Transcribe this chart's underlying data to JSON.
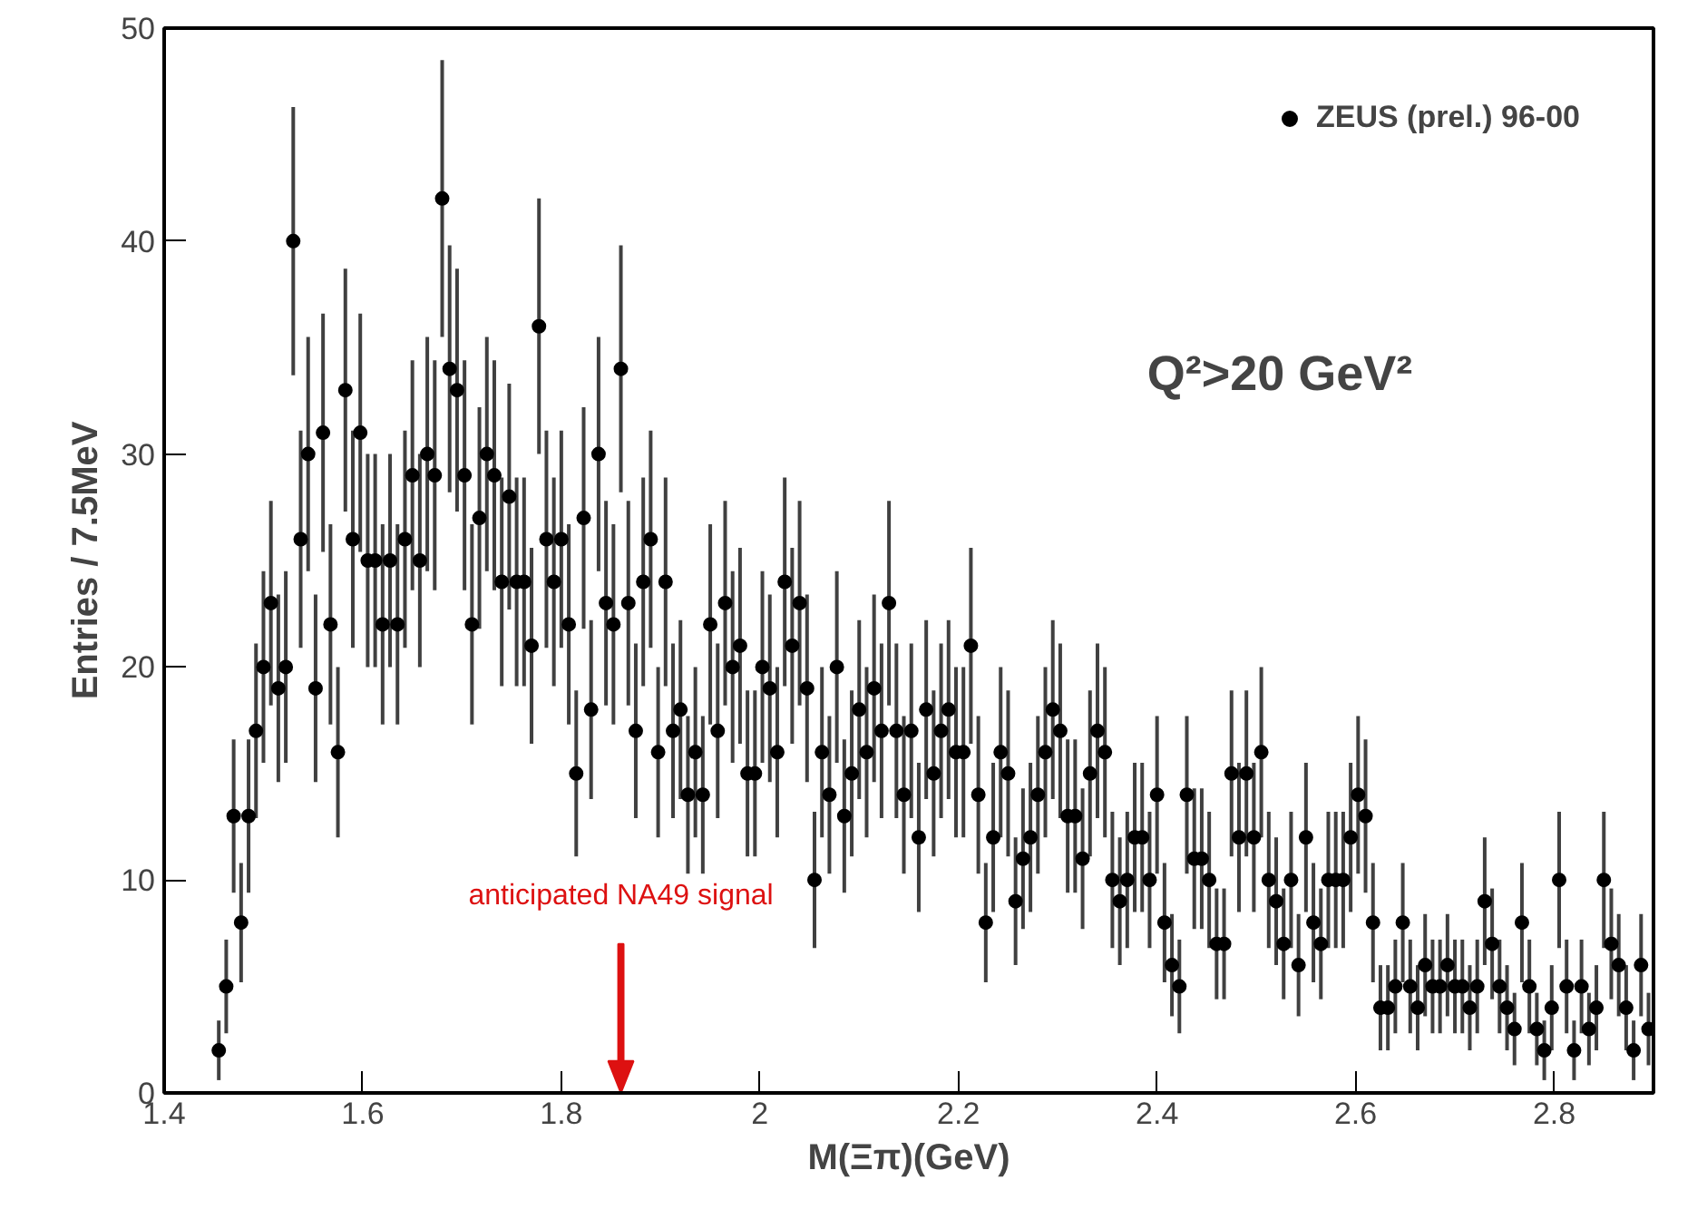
{
  "chart_data": {
    "type": "scatter",
    "xlabel": "M(Ξπ)(GeV)",
    "ylabel": "Entries / 7.5MeV",
    "xlim": [
      1.4,
      2.9
    ],
    "ylim": [
      0,
      50
    ],
    "xticks": [
      1.4,
      1.6,
      1.8,
      2,
      2.2,
      2.4,
      2.6,
      2.8
    ],
    "yticks": [
      0,
      10,
      20,
      30,
      40,
      50
    ],
    "grid": false,
    "legend": "top right",
    "marker": "circle",
    "annotations": [
      "Q²>20 GeV²"
    ],
    "ref_lines": [
      {
        "axis": "x",
        "value": 1.86,
        "label": "anticipated NA49 signal",
        "color": "#dd1111"
      }
    ],
    "series": [
      {
        "name": "ZEUS (prel.) 96-00",
        "color": "#000000",
        "x": [
          1.455,
          1.4625,
          1.47,
          1.4775,
          1.485,
          1.4925,
          1.5,
          1.5075,
          1.515,
          1.5225,
          1.53,
          1.5375,
          1.545,
          1.5525,
          1.56,
          1.5675,
          1.575,
          1.5825,
          1.59,
          1.5975,
          1.605,
          1.6125,
          1.62,
          1.6275,
          1.635,
          1.6425,
          1.65,
          1.6575,
          1.665,
          1.6725,
          1.68,
          1.6875,
          1.695,
          1.7025,
          1.71,
          1.7175,
          1.725,
          1.7325,
          1.74,
          1.7475,
          1.755,
          1.7625,
          1.77,
          1.7775,
          1.785,
          1.7925,
          1.8,
          1.8075,
          1.815,
          1.8225,
          1.83,
          1.8375,
          1.845,
          1.8525,
          1.86,
          1.8675,
          1.875,
          1.8825,
          1.89,
          1.8975,
          1.905,
          1.9125,
          1.92,
          1.9275,
          1.935,
          1.9425,
          1.95,
          1.9575,
          1.965,
          1.9725,
          1.98,
          1.9875,
          1.995,
          2.0025,
          2.01,
          2.0175,
          2.025,
          2.0325,
          2.04,
          2.0475,
          2.055,
          2.0625,
          2.07,
          2.0775,
          2.085,
          2.0925,
          2.1,
          2.1075,
          2.115,
          2.1225,
          2.13,
          2.1375,
          2.145,
          2.1525,
          2.16,
          2.1675,
          2.175,
          2.1825,
          2.19,
          2.1975,
          2.205,
          2.2125,
          2.22,
          2.2275,
          2.235,
          2.2425,
          2.25,
          2.2575,
          2.265,
          2.2725,
          2.28,
          2.2875,
          2.295,
          2.3025,
          2.31,
          2.3175,
          2.325,
          2.3325,
          2.34,
          2.3475,
          2.355,
          2.3625,
          2.37,
          2.3775,
          2.385,
          2.3925,
          2.4,
          2.4075,
          2.415,
          2.4225,
          2.43,
          2.4375,
          2.445,
          2.4525,
          2.46,
          2.4675,
          2.475,
          2.4825,
          2.49,
          2.4975,
          2.505,
          2.5125,
          2.52,
          2.5275,
          2.535,
          2.5425,
          2.55,
          2.5575,
          2.565,
          2.5725,
          2.58,
          2.5875,
          2.595,
          2.6025,
          2.61,
          2.6175,
          2.625,
          2.6325,
          2.64,
          2.6475,
          2.655,
          2.6625,
          2.67,
          2.6775,
          2.685,
          2.6925,
          2.7,
          2.7075,
          2.715,
          2.7225,
          2.73,
          2.7375,
          2.745,
          2.7525,
          2.76,
          2.7675,
          2.775,
          2.7825,
          2.79,
          2.7975,
          2.805,
          2.8125,
          2.82,
          2.8275,
          2.835,
          2.8425,
          2.85,
          2.8575,
          2.865,
          2.8725,
          2.88,
          2.8875,
          2.895
        ],
        "values": [
          2,
          5,
          13,
          8,
          13,
          17,
          20,
          23,
          19,
          20,
          40,
          26,
          30,
          19,
          31,
          22,
          16,
          33,
          26,
          31,
          25,
          25,
          22,
          25,
          22,
          26,
          29,
          25,
          30,
          29,
          42,
          34,
          33,
          29,
          22,
          27,
          30,
          29,
          24,
          28,
          24,
          24,
          21,
          36,
          26,
          24,
          26,
          22,
          15,
          27,
          18,
          30,
          23,
          22,
          34,
          23,
          17,
          24,
          26,
          16,
          24,
          17,
          18,
          14,
          16,
          14,
          22,
          17,
          23,
          20,
          21,
          15,
          15,
          20,
          19,
          16,
          24,
          21,
          23,
          19,
          10,
          16,
          14,
          20,
          13,
          15,
          18,
          16,
          19,
          17,
          23,
          17,
          14,
          17,
          12,
          18,
          15,
          17,
          18,
          16,
          16,
          21,
          14,
          8,
          12,
          16,
          15,
          9,
          11,
          12,
          14,
          16,
          18,
          17,
          13,
          13,
          11,
          15,
          17,
          16,
          10,
          9,
          10,
          12,
          12,
          10,
          14,
          8,
          6,
          5,
          14,
          11,
          11,
          10,
          7,
          7,
          15,
          12,
          15,
          12,
          16,
          10,
          9,
          7,
          10,
          6,
          12,
          8,
          7,
          10,
          10,
          10,
          12,
          14,
          13,
          8,
          4,
          4,
          5,
          8,
          5,
          4,
          6,
          5,
          5,
          6,
          5,
          5,
          4,
          5,
          9,
          7,
          5,
          4,
          3,
          8,
          5,
          3,
          2,
          4,
          10,
          5,
          2,
          5,
          3,
          4,
          10,
          7,
          6,
          4,
          2,
          6,
          3
        ],
        "errors": [
          1.4,
          2.2,
          3.6,
          2.8,
          3.6,
          4.1,
          4.5,
          4.8,
          4.4,
          4.5,
          6.3,
          5.1,
          5.5,
          4.4,
          5.6,
          4.7,
          4,
          5.7,
          5.1,
          5.6,
          5,
          5,
          4.7,
          5,
          4.7,
          5.1,
          5.4,
          5,
          5.5,
          5.4,
          6.5,
          5.8,
          5.7,
          5.4,
          4.7,
          5.2,
          5.5,
          5.4,
          4.9,
          5.3,
          4.9,
          4.9,
          4.6,
          6,
          5.1,
          4.9,
          5.1,
          4.7,
          3.9,
          5.2,
          4.2,
          5.5,
          4.8,
          4.7,
          5.8,
          4.8,
          4.1,
          4.9,
          5.1,
          4,
          4.9,
          4.1,
          4.2,
          3.7,
          4,
          3.7,
          4.7,
          4.1,
          4.8,
          4.5,
          4.6,
          3.9,
          3.9,
          4.5,
          4.4,
          4,
          4.9,
          4.6,
          4.8,
          4.4,
          3.2,
          4,
          3.7,
          4.5,
          3.6,
          3.9,
          4.2,
          4,
          4.4,
          4.1,
          4.8,
          4.1,
          3.7,
          4.1,
          3.5,
          4.2,
          3.9,
          4.1,
          4.2,
          4,
          4,
          4.6,
          3.7,
          2.8,
          3.5,
          4,
          3.9,
          3,
          3.3,
          3.5,
          3.7,
          4,
          4.2,
          4.1,
          3.6,
          3.6,
          3.3,
          3.9,
          4.1,
          4,
          3.2,
          3,
          3.2,
          3.5,
          3.5,
          3.2,
          3.7,
          2.8,
          2.4,
          2.2,
          3.7,
          3.3,
          3.3,
          3.2,
          2.6,
          2.6,
          3.9,
          3.5,
          3.9,
          3.5,
          4,
          3.2,
          3,
          2.6,
          3.2,
          2.4,
          3.5,
          2.8,
          2.6,
          3.2,
          3.2,
          3.2,
          3.5,
          3.7,
          3.6,
          2.8,
          2,
          2,
          2.2,
          2.8,
          2.2,
          2,
          2.4,
          2.2,
          2.2,
          2.4,
          2.2,
          2.2,
          2,
          2.2,
          3,
          2.6,
          2.2,
          2,
          1.7,
          2.8,
          2.2,
          1.7,
          1.4,
          2,
          3.2,
          2.2,
          1.4,
          2.2,
          1.7,
          2,
          3.2,
          2.6,
          2.4,
          2,
          1.4,
          2.4,
          1.7
        ]
      }
    ]
  }
}
